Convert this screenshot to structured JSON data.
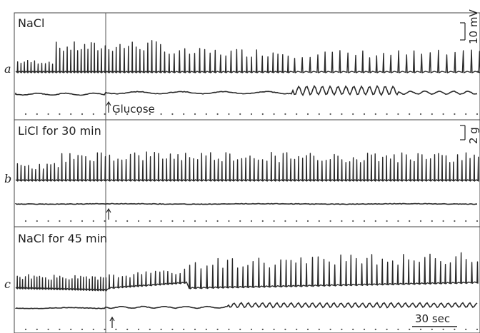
{
  "chart_data": {
    "type": "line",
    "title": "",
    "panels": [
      {
        "letter": "a",
        "label": "NaCl",
        "marker_label": "Glucose",
        "electrical_trace": {
          "spike_rate_before": "bursting",
          "spike_rate_after": "slower, larger spikes"
        },
        "mechanical_trace": {
          "note": "rhythmic contractions develop late in record"
        }
      },
      {
        "letter": "b",
        "label": "LiCl for 30 min",
        "marker_label": "",
        "electrical_trace": {
          "spike_rate_before": "regular",
          "spike_rate_after": "regular, fast"
        },
        "mechanical_trace": {
          "note": "flat"
        }
      },
      {
        "letter": "c",
        "label": "NaCl for 45 min",
        "marker_label": "",
        "electrical_trace": {
          "spike_rate_before": "small",
          "spike_rate_after": "spikes grow"
        },
        "mechanical_trace": {
          "note": "small rhythmic oscillations"
        }
      }
    ],
    "scale_bars": {
      "voltage": "10 mV",
      "tension": "2 g",
      "time": "30 sec"
    },
    "grid": false
  }
}
